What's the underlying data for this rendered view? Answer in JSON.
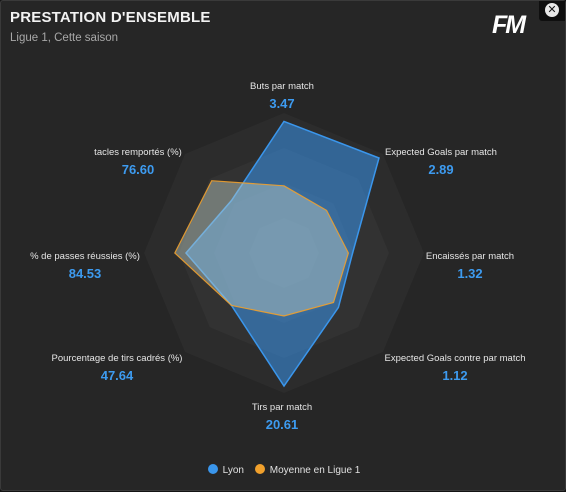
{
  "header": {
    "title": "PRESTATION D'ENSEMBLE",
    "subtitle": "Ligue 1, Cette saison",
    "logo_text": "FM",
    "close_glyph": "✕"
  },
  "chart_data": {
    "type": "radar",
    "axes": [
      {
        "label": "Buts par match",
        "value": "3.47",
        "team_norm": 0.94,
        "avg_norm": 0.48
      },
      {
        "label": "Expected Goals par match",
        "value": "2.89",
        "team_norm": 0.96,
        "avg_norm": 0.43
      },
      {
        "label": "Encaissés par match",
        "value": "1.32",
        "team_norm": 0.49,
        "avg_norm": 0.46
      },
      {
        "label": "Expected Goals contre par match",
        "value": "1.12",
        "team_norm": 0.55,
        "avg_norm": 0.5
      },
      {
        "label": "Tirs par match",
        "value": "20.61",
        "team_norm": 0.95,
        "avg_norm": 0.45
      },
      {
        "label": "Pourcentage de tirs cadrés (%)",
        "value": "47.64",
        "team_norm": 0.53,
        "avg_norm": 0.53
      },
      {
        "label": "% de passes réussies (%)",
        "value": "84.53",
        "team_norm": 0.7,
        "avg_norm": 0.78
      },
      {
        "label": "tacles remportés (%)",
        "value": "76.60",
        "team_norm": 0.53,
        "avg_norm": 0.73
      }
    ],
    "series": [
      {
        "name": "Lyon",
        "color": "#3a96ec"
      },
      {
        "name": "Moyenne en Ligue 1",
        "color": "#f0a02c"
      }
    ],
    "grid_levels": 4
  }
}
